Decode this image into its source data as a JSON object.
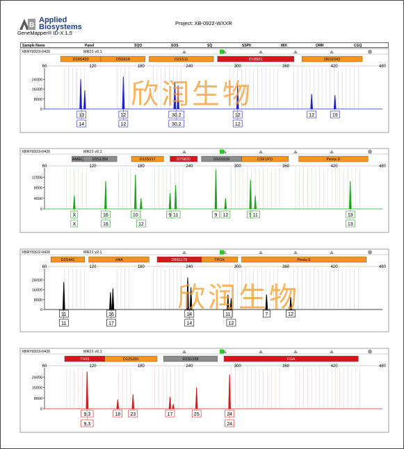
{
  "app": {
    "brand_line1": "Applied",
    "brand_line2": "Biosystems",
    "version": "GeneMapper® ID-X  1.5"
  },
  "project": {
    "title": "Project: XB-0922-WXXR"
  },
  "header": {
    "columns": [
      "Sample Name",
      "Panel",
      "SQO",
      "SOS",
      "SQ",
      "SSPK",
      "MIX",
      "OMR",
      "CGQ"
    ]
  },
  "watermark": {
    "text": "欣润生物"
  },
  "colors": {
    "blue": "#1a20c9",
    "green": "#1aa51a",
    "black": "#000000",
    "red": "#d41a1a",
    "marker_orange": "#f7941d",
    "marker_red": "#d9141b",
    "marker_grey": "#8c8c8c"
  },
  "chart_data": [
    {
      "type": "electropherogram",
      "sample": "XBRY0322-0426",
      "panel": "MR21_v2.1",
      "dye": "blue",
      "xlim": [
        60,
        480
      ],
      "xticks": [
        60,
        120,
        180,
        240,
        300,
        360,
        420,
        480
      ],
      "ylim": [
        0,
        32000
      ],
      "yticks": [
        0,
        8000,
        16000,
        24000
      ],
      "markers": [
        {
          "name": "D19S433",
          "start": 80,
          "end": 130,
          "color": "orange"
        },
        {
          "name": "D5S818",
          "start": 130,
          "end": 185,
          "color": "orange"
        },
        {
          "name": "D21S11",
          "start": 190,
          "end": 270,
          "color": "orange"
        },
        {
          "name": "D18S51",
          "start": 275,
          "end": 370,
          "color": "red"
        },
        {
          "name": "D6S1043",
          "start": 380,
          "end": 455,
          "color": "orange"
        }
      ],
      "peaks": [
        {
          "x": 105,
          "h": 24000
        },
        {
          "x": 110,
          "h": 15000
        },
        {
          "x": 158,
          "h": 26000
        },
        {
          "x": 222,
          "h": 22000
        },
        {
          "x": 226,
          "h": 19000
        },
        {
          "x": 300,
          "h": 19000
        },
        {
          "x": 392,
          "h": 12000
        },
        {
          "x": 421,
          "h": 11000
        }
      ],
      "allele_labels": [
        {
          "x": 106,
          "a1": "13",
          "a2": "14"
        },
        {
          "x": 158,
          "a1": "12",
          "a2": "12"
        },
        {
          "x": 224,
          "a1": "30.2",
          "a2": "30.2"
        },
        {
          "x": 300,
          "a1": "12",
          "a2": "12"
        },
        {
          "x": 392,
          "a1": "12",
          "a2": ""
        },
        {
          "x": 421,
          "a1": "19",
          "a2": ""
        }
      ]
    },
    {
      "type": "electropherogram",
      "sample": "XBRY0322-0426",
      "panel": "MR21_v2.1",
      "dye": "green",
      "xlim": [
        60,
        480
      ],
      "xticks": [
        60,
        120,
        180,
        240,
        300,
        360,
        420,
        480
      ],
      "ylim": [
        0,
        15000
      ],
      "yticks": [
        0,
        4000,
        8000,
        12000
      ],
      "markers": [
        {
          "name": "AMEL",
          "start": 94,
          "end": 108,
          "color": "grey"
        },
        {
          "name": "D3S1358",
          "start": 108,
          "end": 150,
          "color": "grey"
        },
        {
          "name": "D13S317",
          "start": 168,
          "end": 208,
          "color": "orange"
        },
        {
          "name": "D7S820",
          "start": 216,
          "end": 250,
          "color": "red"
        },
        {
          "name": "D16S539",
          "start": 255,
          "end": 305,
          "color": "grey"
        },
        {
          "name": "CSF1PO",
          "start": 305,
          "end": 363,
          "color": "orange"
        },
        {
          "name": "Penta D",
          "start": 376,
          "end": 462,
          "color": "orange"
        }
      ],
      "peaks": [
        {
          "x": 97,
          "h": 5000
        },
        {
          "x": 136,
          "h": 10500
        },
        {
          "x": 173,
          "h": 13000
        },
        {
          "x": 180,
          "h": 4000
        },
        {
          "x": 216,
          "h": 6000
        },
        {
          "x": 223,
          "h": 9000
        },
        {
          "x": 273,
          "h": 15000
        },
        {
          "x": 285,
          "h": 4000
        },
        {
          "x": 316,
          "h": 11000
        },
        {
          "x": 322,
          "h": 5000
        },
        {
          "x": 440,
          "h": 10500
        }
      ],
      "allele_labels": [
        {
          "x": 97,
          "a1": "X",
          "a2": "X"
        },
        {
          "x": 136,
          "a1": "16",
          "a2": "16"
        },
        {
          "x": 173,
          "a1": "10",
          "a2": ""
        },
        {
          "x": 180,
          "a1": "",
          "a2": "12"
        },
        {
          "x": 216,
          "a1": "9",
          "a2": ""
        },
        {
          "x": 223,
          "a1": "11",
          "a2": ""
        },
        {
          "x": 273,
          "a1": "9",
          "a2": ""
        },
        {
          "x": 285,
          "a1": "12",
          "a2": ""
        },
        {
          "x": 316,
          "a1": "9",
          "a2": ""
        },
        {
          "x": 322,
          "a1": "11",
          "a2": ""
        },
        {
          "x": 440,
          "a1": "13",
          "a2": "13"
        }
      ]
    },
    {
      "type": "electropherogram",
      "sample": "XBRY0322-0426",
      "panel": "MR21_v2.1",
      "dye": "black",
      "xlim": [
        60,
        480
      ],
      "xticks": [
        60,
        120,
        180,
        240,
        300,
        360,
        420,
        480
      ],
      "ylim": [
        0,
        32000
      ],
      "yticks": [
        0,
        8000,
        16000,
        24000
      ],
      "markers": [
        {
          "name": "D2S441",
          "start": 68,
          "end": 110,
          "color": "orange"
        },
        {
          "name": "vWA",
          "start": 115,
          "end": 190,
          "color": "orange"
        },
        {
          "name": "D8S1179",
          "start": 200,
          "end": 255,
          "color": "red"
        },
        {
          "name": "TPOX",
          "start": 255,
          "end": 300,
          "color": "orange"
        },
        {
          "name": "Penta E",
          "start": 305,
          "end": 460,
          "color": "orange"
        }
      ],
      "peaks": [
        {
          "x": 84,
          "h": 22000
        },
        {
          "x": 142,
          "h": 14000
        },
        {
          "x": 145,
          "h": 17000
        },
        {
          "x": 238,
          "h": 26000
        },
        {
          "x": 242,
          "h": 18000
        },
        {
          "x": 288,
          "h": 12000
        },
        {
          "x": 292,
          "h": 9000
        },
        {
          "x": 336,
          "h": 12000
        },
        {
          "x": 366,
          "h": 10000
        }
      ],
      "allele_labels": [
        {
          "x": 84,
          "a1": "11",
          "a2": "11"
        },
        {
          "x": 143,
          "a1": "16",
          "a2": "17"
        },
        {
          "x": 240,
          "a1": "14",
          "a2": "14"
        },
        {
          "x": 288,
          "a1": "11",
          "a2": ""
        },
        {
          "x": 292,
          "a1": "",
          "a2": "12"
        },
        {
          "x": 336,
          "a1": "7",
          "a2": ""
        },
        {
          "x": 366,
          "a1": "12",
          "a2": ""
        }
      ]
    },
    {
      "type": "electropherogram",
      "sample": "XBRY0322-0426",
      "panel": "MR21_v2.1",
      "dye": "red",
      "xlim": [
        60,
        480
      ],
      "xticks": [
        60,
        120,
        180,
        240,
        300,
        360,
        420,
        480
      ],
      "ylim": [
        0,
        30000
      ],
      "yticks": [
        0,
        8000,
        16000,
        24000
      ],
      "markers": [
        {
          "name": "TH01",
          "start": 85,
          "end": 135,
          "color": "red"
        },
        {
          "name": "D12S391",
          "start": 135,
          "end": 200,
          "color": "orange"
        },
        {
          "name": "D2S1338",
          "start": 208,
          "end": 275,
          "color": "grey"
        },
        {
          "name": "FGA",
          "start": 283,
          "end": 450,
          "color": "red"
        }
      ],
      "peaks": [
        {
          "x": 113,
          "h": 28000
        },
        {
          "x": 151,
          "h": 7000
        },
        {
          "x": 170,
          "h": 11000
        },
        {
          "x": 216,
          "h": 9000
        },
        {
          "x": 220,
          "h": 3500
        },
        {
          "x": 249,
          "h": 16000
        },
        {
          "x": 290,
          "h": 26000
        }
      ],
      "allele_labels": [
        {
          "x": 113,
          "a1": "9.3",
          "a2": "9.3"
        },
        {
          "x": 151,
          "a1": "18",
          "a2": ""
        },
        {
          "x": 170,
          "a1": "23",
          "a2": ""
        },
        {
          "x": 216,
          "a1": "17",
          "a2": ""
        },
        {
          "x": 249,
          "a1": "25",
          "a2": ""
        },
        {
          "x": 290,
          "a1": "24",
          "a2": "24"
        }
      ]
    }
  ]
}
